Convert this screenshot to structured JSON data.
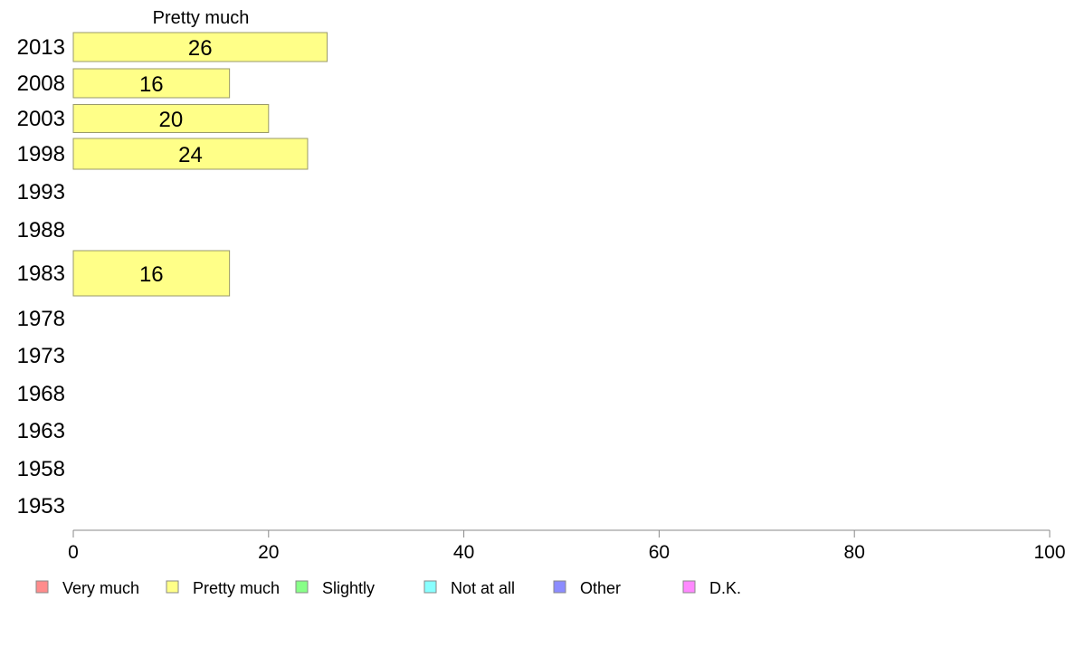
{
  "chart_data": {
    "type": "bar",
    "orientation": "horizontal",
    "title": "Pretty much",
    "categories": [
      "2013",
      "2008",
      "2003",
      "1998",
      "1993",
      "1988",
      "1983",
      "1978",
      "1973",
      "1968",
      "1963",
      "1958",
      "1953"
    ],
    "series": [
      {
        "name": "Pretty much",
        "values": [
          26,
          16,
          20,
          24,
          null,
          null,
          16,
          null,
          null,
          null,
          null,
          null,
          null
        ]
      }
    ],
    "xlim": [
      0,
      100
    ],
    "xticks": [
      0,
      20,
      40,
      60,
      80,
      100
    ],
    "grid": false,
    "legend": {
      "placement": "bottom",
      "entries": [
        {
          "label": "Very much",
          "color": "#ff8c8c"
        },
        {
          "label": "Pretty much",
          "color": "#ffff88"
        },
        {
          "label": "Slightly",
          "color": "#88ff88"
        },
        {
          "label": "Not at all",
          "color": "#88ffff"
        },
        {
          "label": "Other",
          "color": "#8c8cff"
        },
        {
          "label": "D.K.",
          "color": "#ff88ff"
        }
      ]
    },
    "bar_color": "#ffff88"
  }
}
